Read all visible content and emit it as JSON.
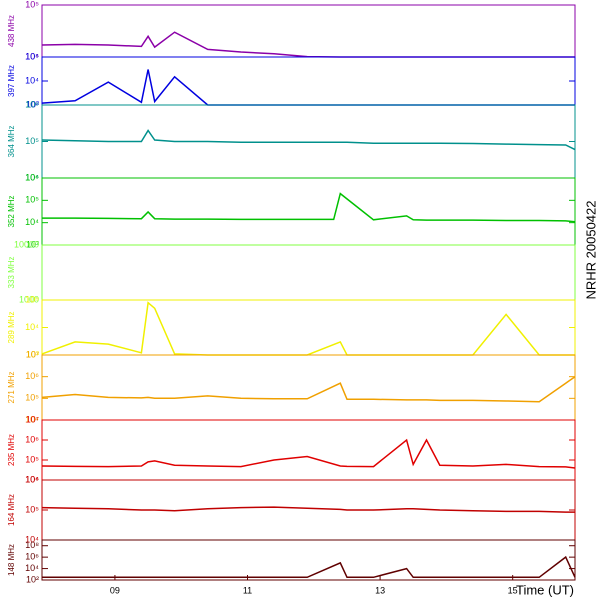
{
  "side_title": "NRHR 20050422",
  "chart_data": [
    {
      "type": "line",
      "ylabel": "438 MHz",
      "color": "#8b00a8",
      "log": true,
      "x": [
        7.9,
        8.4,
        8.9,
        9.4,
        9.5,
        9.6,
        9.9,
        10.4,
        10.9,
        11.4,
        11.9,
        12.4,
        12.5,
        12.9,
        13.4,
        13.5,
        13.7,
        13.9,
        14.4,
        14.9,
        15.4,
        15.8,
        15.94
      ],
      "values": [
        17000,
        17500,
        17000,
        16000,
        25000,
        15500,
        30000,
        14000,
        12500,
        11500,
        10200,
        10000,
        10000,
        10000,
        10000,
        10000,
        10000,
        10000,
        10000,
        10000,
        10000,
        10000,
        10000
      ],
      "xlim": [
        7.9,
        15.94
      ],
      "ylim": [
        10000,
        100000
      ],
      "yticks": [
        {
          "value": 10000,
          "label": "10⁴"
        },
        {
          "value": 100000,
          "label": "10⁵"
        }
      ]
    },
    {
      "type": "line",
      "ylabel": "397 MHz",
      "color": "#0000e0",
      "log": true,
      "x": [
        7.9,
        8.4,
        8.9,
        9.4,
        9.5,
        9.6,
        9.9,
        10.4,
        10.9,
        11.4,
        11.9,
        12.4,
        12.5,
        12.9,
        13.4,
        13.5,
        13.7,
        13.9,
        14.4,
        14.9,
        15.4,
        15.8,
        15.94
      ],
      "values": [
        1200,
        1500,
        9000,
        1300,
        30000,
        1400,
        15000,
        1000,
        1000,
        1000,
        1000,
        1000,
        1000,
        1000,
        1000,
        1000,
        1000,
        1000,
        1000,
        1000,
        1000,
        1000,
        1000
      ],
      "xlim": [
        7.9,
        15.94
      ],
      "ylim": [
        1000,
        100000
      ],
      "yticks": [
        {
          "value": 1000,
          "label": "10³"
        },
        {
          "value": 10000,
          "label": "10⁴"
        },
        {
          "value": 100000,
          "label": "10⁵"
        }
      ]
    },
    {
      "type": "line",
      "ylabel": "364 MHz",
      "color": "#00908c",
      "log": true,
      "x": [
        7.9,
        8.4,
        8.9,
        9.4,
        9.5,
        9.6,
        9.9,
        10.4,
        10.9,
        11.4,
        11.9,
        12.4,
        12.5,
        12.9,
        13.4,
        13.5,
        13.7,
        13.9,
        14.4,
        14.9,
        15.4,
        15.8,
        15.94
      ],
      "values": [
        110000,
        105000,
        100000,
        100000,
        200000,
        110000,
        100000,
        100000,
        95000,
        95000,
        95000,
        95000,
        95000,
        90000,
        90000,
        90000,
        90000,
        90000,
        88000,
        85000,
        82000,
        80000,
        60000
      ],
      "xlim": [
        7.9,
        15.94
      ],
      "ylim": [
        10000,
        1000000
      ],
      "yticks": [
        {
          "value": 10000,
          "label": "10⁴"
        },
        {
          "value": 100000,
          "label": "10⁵"
        },
        {
          "value": 1000000,
          "label": "10⁶"
        }
      ]
    },
    {
      "type": "line",
      "ylabel": "352 MHz",
      "color": "#00c000",
      "log": true,
      "x": [
        7.9,
        8.4,
        8.9,
        9.4,
        9.5,
        9.6,
        9.9,
        10.4,
        10.9,
        11.4,
        11.9,
        12.3,
        12.4,
        12.9,
        13.4,
        13.5,
        13.7,
        13.9,
        14.4,
        14.9,
        15.4,
        15.8,
        15.94
      ],
      "values": [
        16000,
        16000,
        15500,
        15000,
        30000,
        15000,
        14500,
        14500,
        14000,
        14000,
        14000,
        14000,
        200000,
        13500,
        20000,
        13500,
        13000,
        13000,
        13000,
        12500,
        12500,
        12000,
        11000
      ],
      "xlim": [
        7.9,
        15.94
      ],
      "ylim": [
        1000,
        1000000
      ],
      "yticks": [
        {
          "value": 1000,
          "label": "10³"
        },
        {
          "value": 10000,
          "label": "10⁴"
        },
        {
          "value": 100000,
          "label": "10⁵"
        },
        {
          "value": 1000000,
          "label": "10⁶"
        }
      ]
    },
    {
      "type": "line",
      "ylabel": "333 MHz",
      "color": "#80ff40",
      "log": true,
      "x": [
        7.9,
        15.94
      ],
      "values": [
        null,
        null
      ],
      "xlim": [
        7.9,
        15.94
      ],
      "ylim": [
        1000,
        10000
      ],
      "yticks": [
        1000,
        10000
      ]
    },
    {
      "type": "line",
      "ylabel": "289 MHz",
      "color": "#f0f000",
      "log": true,
      "x": [
        7.9,
        8.4,
        8.9,
        9.4,
        9.5,
        9.6,
        9.9,
        10.4,
        10.9,
        11.4,
        11.9,
        12.4,
        12.5,
        12.9,
        13.4,
        13.5,
        13.7,
        13.9,
        14.4,
        14.9,
        15.4,
        15.8,
        15.94
      ],
      "values": [
        1100,
        3000,
        2500,
        1200,
        80000,
        50000,
        1100,
        1000,
        1000,
        1000,
        1000,
        3000,
        1000,
        1000,
        1000,
        1000,
        1000,
        1000,
        1000,
        30000,
        1000,
        1000,
        1000
      ],
      "xlim": [
        7.9,
        15.94
      ],
      "ylim": [
        1000,
        100000
      ],
      "yticks": [
        {
          "value": 1000,
          "label": "10³"
        },
        {
          "value": 10000,
          "label": "10⁴"
        },
        {
          "value": 100000,
          "label": "10⁵"
        }
      ]
    },
    {
      "type": "line",
      "ylabel": "271 MHz",
      "color": "#f0a000",
      "log": true,
      "x": [
        7.9,
        8.4,
        8.9,
        9.4,
        9.5,
        9.6,
        9.9,
        10.4,
        10.9,
        11.4,
        11.9,
        12.4,
        12.5,
        12.9,
        13.4,
        13.5,
        13.7,
        13.9,
        14.4,
        14.9,
        15.4,
        15.8,
        15.94
      ],
      "values": [
        110000,
        150000,
        110000,
        105000,
        110000,
        100000,
        100000,
        130000,
        100000,
        95000,
        95000,
        500000,
        90000,
        90000,
        85000,
        85000,
        85000,
        80000,
        80000,
        75000,
        70000,
        500000,
        1000000
      ],
      "xlim": [
        7.9,
        15.94
      ],
      "ylim": [
        10000,
        10000000
      ],
      "yticks": [
        {
          "value": 10000,
          "label": "10⁴"
        },
        {
          "value": 100000,
          "label": "10⁵"
        },
        {
          "value": 1000000,
          "label": "10⁶"
        },
        {
          "value": 10000000,
          "label": "10⁷"
        }
      ]
    },
    {
      "type": "line",
      "ylabel": "235 MHz",
      "color": "#e00000",
      "log": true,
      "x": [
        7.9,
        8.4,
        8.9,
        9.4,
        9.5,
        9.6,
        9.9,
        10.4,
        10.9,
        11.4,
        11.9,
        12.4,
        12.5,
        12.9,
        13.4,
        13.5,
        13.7,
        13.9,
        14.4,
        14.9,
        15.4,
        15.8,
        15.94
      ],
      "values": [
        50000,
        48000,
        47000,
        50000,
        80000,
        90000,
        55000,
        50000,
        47000,
        100000,
        150000,
        50000,
        48000,
        47000,
        1000000,
        60000,
        1000000,
        55000,
        50000,
        60000,
        47000,
        45000,
        40000
      ],
      "xlim": [
        7.9,
        15.94
      ],
      "ylim": [
        10000,
        10000000
      ],
      "yticks": [
        {
          "value": 10000,
          "label": "10⁴"
        },
        {
          "value": 100000,
          "label": "10⁵"
        },
        {
          "value": 1000000,
          "label": "10⁶"
        },
        {
          "value": 10000000,
          "label": "10⁷"
        }
      ]
    },
    {
      "type": "line",
      "ylabel": "164 MHz",
      "color": "#c00000",
      "log": true,
      "x": [
        7.9,
        8.4,
        8.9,
        9.4,
        9.5,
        9.6,
        9.9,
        10.4,
        10.9,
        11.4,
        11.9,
        12.4,
        12.5,
        12.9,
        13.4,
        13.5,
        13.7,
        13.9,
        14.4,
        14.9,
        15.4,
        15.8,
        15.94
      ],
      "values": [
        120000,
        115000,
        110000,
        100000,
        100000,
        100000,
        95000,
        110000,
        120000,
        125000,
        115000,
        105000,
        100000,
        100000,
        110000,
        110000,
        105000,
        100000,
        95000,
        90000,
        90000,
        85000,
        85000
      ],
      "xlim": [
        7.9,
        15.94
      ],
      "ylim": [
        10000,
        1000000
      ],
      "yticks": [
        {
          "value": 10000,
          "label": "10⁴"
        },
        {
          "value": 100000,
          "label": "10⁵"
        },
        {
          "value": 1000000,
          "label": "10⁶"
        }
      ]
    },
    {
      "type": "line",
      "ylabel": "148 MHz",
      "color": "#600000",
      "log": true,
      "x": [
        7.9,
        8.4,
        8.9,
        9.4,
        9.5,
        9.6,
        9.9,
        10.4,
        10.9,
        11.4,
        11.9,
        12.4,
        12.5,
        12.9,
        13.4,
        13.5,
        13.7,
        13.9,
        14.4,
        14.9,
        15.4,
        15.8,
        15.94
      ],
      "values": [
        300,
        300,
        300,
        300,
        300,
        300,
        300,
        300,
        300,
        300,
        300,
        100000,
        300,
        300,
        10000,
        300,
        300,
        300,
        300,
        300,
        300,
        1000000,
        300
      ],
      "xlim": [
        7.9,
        15.94
      ],
      "ylim": [
        100,
        1000000000
      ],
      "yticks": [
        {
          "value": 100,
          "label": "10²"
        },
        {
          "value": 10000,
          "label": "10⁴"
        },
        {
          "value": 1000000,
          "label": "10⁶"
        },
        {
          "value": 100000000,
          "label": "10⁸"
        }
      ],
      "xlabel": "Time (UT)",
      "xticks": [
        {
          "value": 9,
          "label": "09"
        },
        {
          "value": 11,
          "label": "11"
        },
        {
          "value": 13,
          "label": "13"
        },
        {
          "value": 15,
          "label": "15"
        }
      ]
    }
  ]
}
